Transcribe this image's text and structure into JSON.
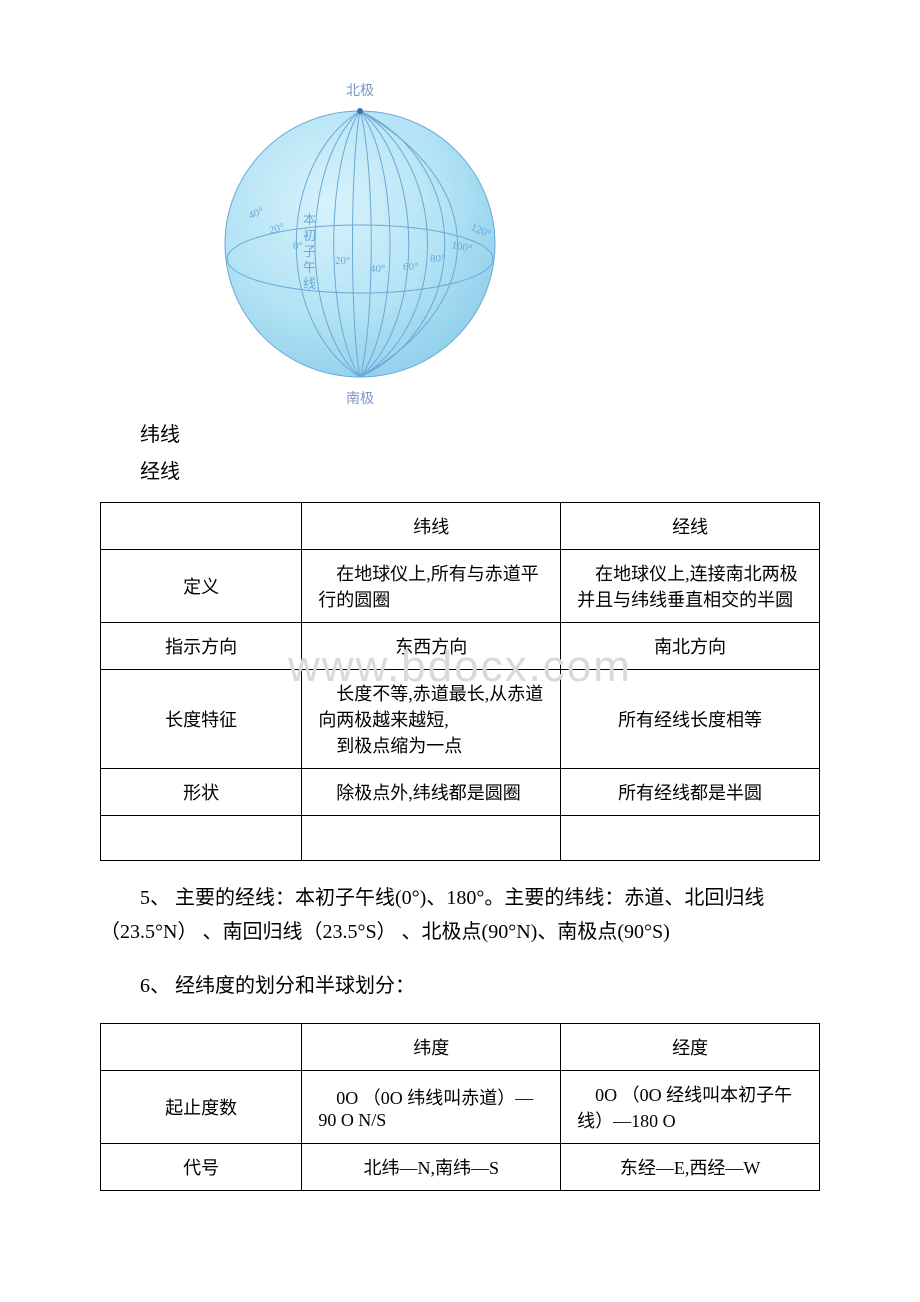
{
  "globe": {
    "north_label": "北极",
    "south_label": "南极",
    "prime_meridian_label": "本初子午线",
    "longitude_ticks": [
      "40°",
      "20°",
      "0°",
      "20°",
      "40°",
      "60°",
      "80°",
      "100°",
      "120°"
    ],
    "sphere_fill_top": "#bfe7f7",
    "sphere_fill_bottom": "#9ed6ef",
    "line_color": "#6aa8d8",
    "label_color": "#7a96c2",
    "radius": 135
  },
  "lines_label_1": "纬线",
  "lines_label_2": "经线",
  "table1": {
    "header": [
      "",
      "纬线",
      "经线"
    ],
    "rows": [
      [
        "定义",
        "　在地球仪上,所有与赤道平行的圆圈",
        "　在地球仪上,连接南北两极并且与纬线垂直相交的半圆"
      ],
      [
        "指示方向",
        "东西方向",
        "南北方向"
      ],
      [
        "长度特征",
        "　长度不等,赤道最长,从赤道向两极越来越短,<br>　到极点缩为一点",
        "所有经线长度相等"
      ],
      [
        "形状",
        "　除极点外,纬线都是圆圈",
        "所有经线都是半圆"
      ]
    ]
  },
  "para5": "5、 主要的经线：本初子午线(0°)、180°。主要的纬线：赤道、北回归线（23.5°N） 、南回归线（23.5°S） 、北极点(90°N)、南极点(90°S)",
  "para6": "6、 经纬度的划分和半球划分：",
  "table2": {
    "header": [
      "",
      "纬度",
      "经度"
    ],
    "rows": [
      [
        "起止度数",
        "　0O （0O 纬线叫赤道）—90 O N/S",
        "　0O （0O 经线叫本初子午线）—180 O"
      ],
      [
        "代号",
        "北纬—N,南纬—S",
        "东经—E,西经—W"
      ]
    ]
  },
  "watermark_text": "www.bdocx.com",
  "watermark_color": "#d9d9d9",
  "watermark_fontsize": 44
}
